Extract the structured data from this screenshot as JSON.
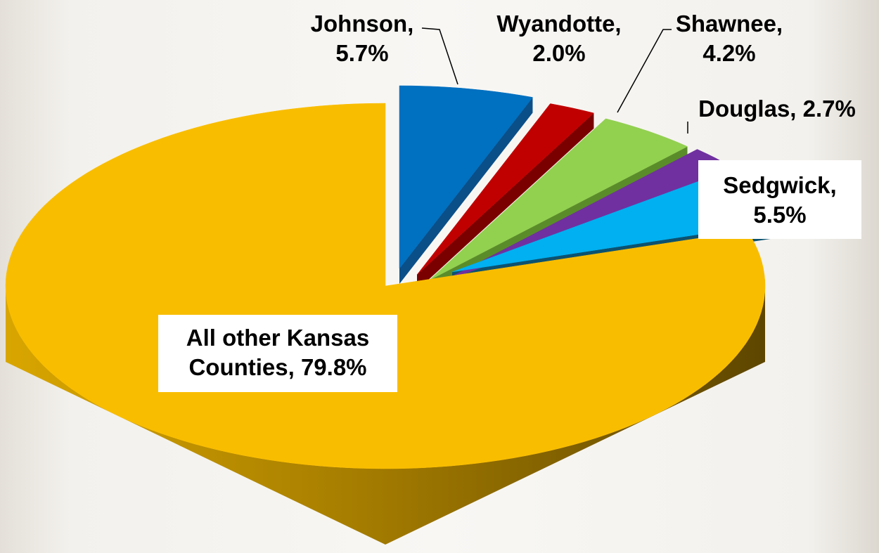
{
  "chart_data": {
    "type": "pie",
    "title": "",
    "legend": "none",
    "slices": [
      {
        "name": "Johnson",
        "value": 5.7,
        "color": "#0070c0",
        "label_lines": [
          "Johnson,",
          "5.7%"
        ]
      },
      {
        "name": "Wyandotte",
        "value": 2.0,
        "color": "#c00000",
        "label_lines": [
          "Wyandotte,",
          "2.0%"
        ]
      },
      {
        "name": "Shawnee",
        "value": 4.2,
        "color": "#92d050",
        "label_lines": [
          "Shawnee,",
          "4.2%"
        ]
      },
      {
        "name": "Douglas",
        "value": 2.7,
        "color": "#7030a0",
        "label_lines": [
          "Douglas, 2.7%"
        ]
      },
      {
        "name": "Sedgwick",
        "value": 5.5,
        "color": "#00b0f0",
        "label_lines": [
          "Sedgwick,",
          "5.5%"
        ]
      },
      {
        "name": "All other Kansas Counties",
        "value": 79.8,
        "color": "#f9bd00",
        "label_lines": [
          "All other Kansas",
          "Counties, 79.8%"
        ]
      }
    ]
  }
}
